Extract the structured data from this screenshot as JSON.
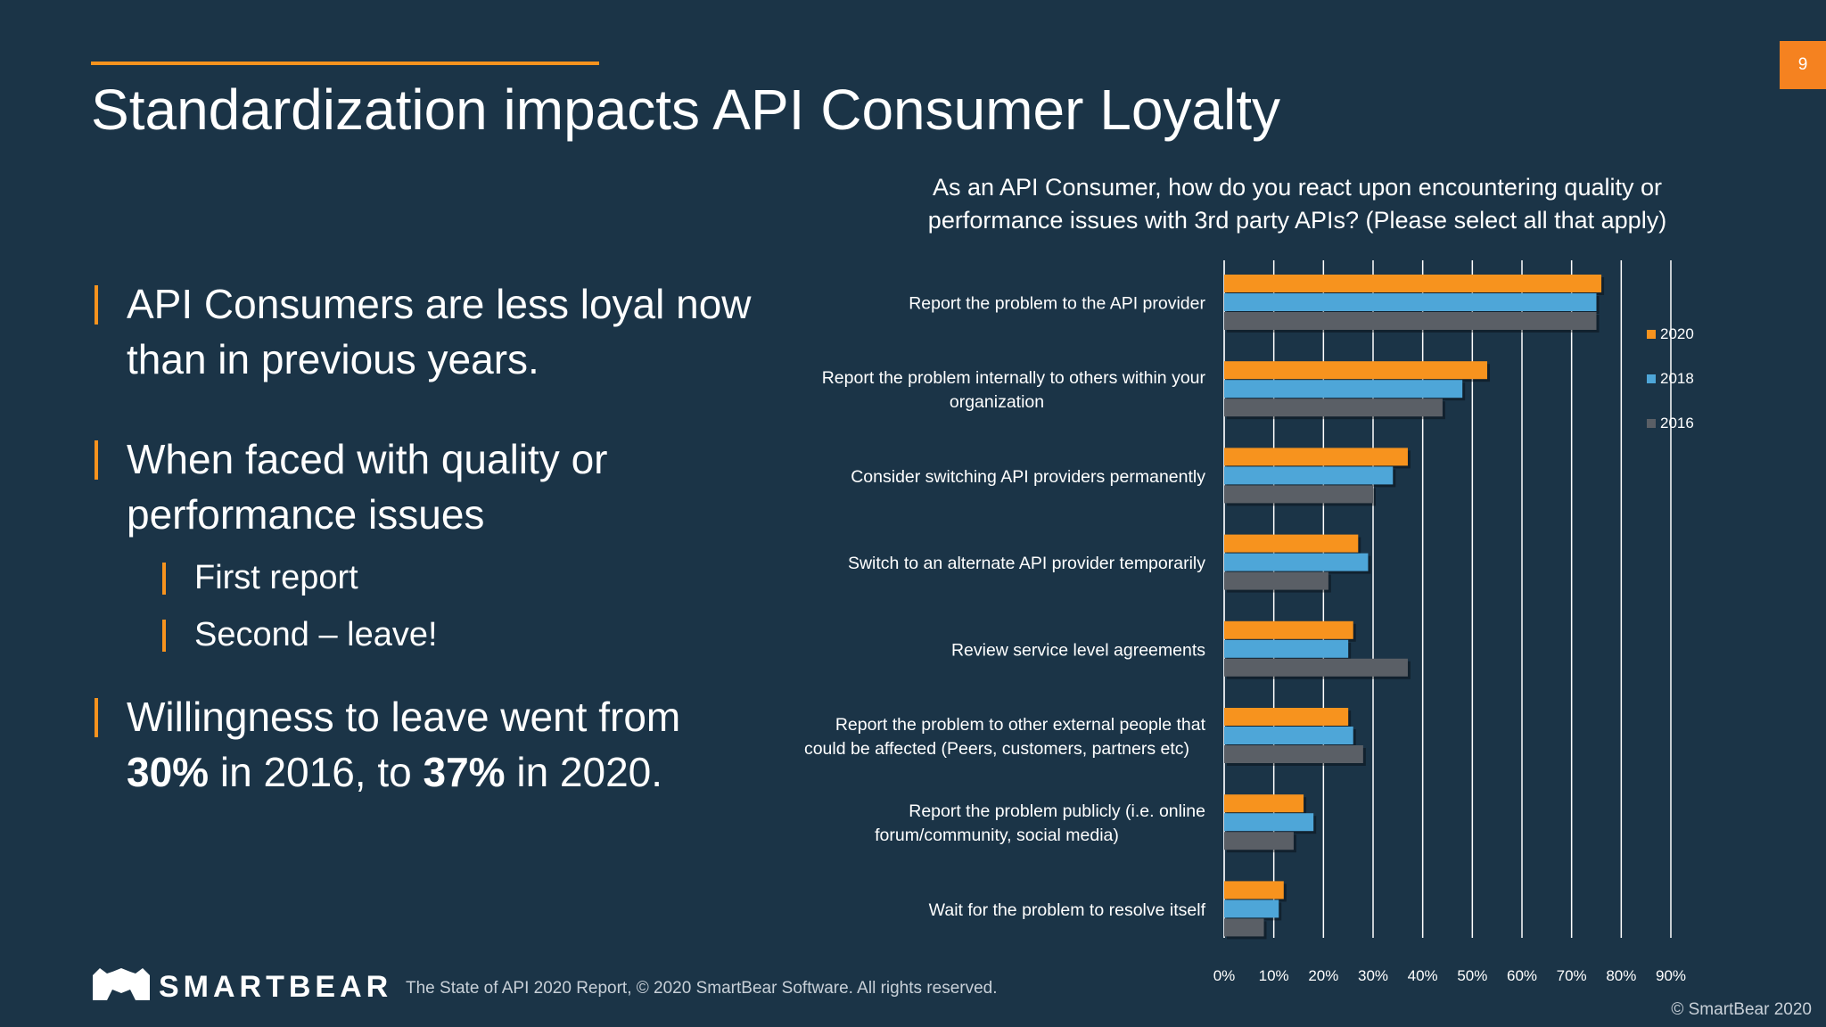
{
  "slide": {
    "title": "Standardization impacts API Consumer Loyalty",
    "page_number": "9",
    "bullets": {
      "b1_line1": "API Consumers are less loyal now",
      "b1_line2": "than in previous years.",
      "b2_line1": "When faced with quality or",
      "b2_line2": "performance  issues",
      "sub1": "First report",
      "sub2": "Second – leave!",
      "b3_line1": "Willingness to leave went from",
      "b3_val1": "30%",
      "b3_mid": " in 2016, to ",
      "b3_val2": "37%",
      "b3_end": " in 2020."
    },
    "footer": {
      "logo_text": "SMARTBEAR",
      "note": "The State of API 2020 Report, © 2020 SmartBear Software. All rights reserved.",
      "copyright": "© SmartBear 2020"
    },
    "colors": {
      "background": "#1b3447",
      "accent": "#f7931e",
      "series_2020": "#f7931e",
      "series_2018": "#4ea6d8",
      "series_2016": "#5a5f66"
    }
  },
  "chart_data": {
    "type": "bar",
    "orientation": "horizontal",
    "title_lines": [
      "As an API Consumer, how do you react upon encountering quality or",
      "performance issues with 3rd party APIs? (Please select all that apply)"
    ],
    "categories": [
      [
        "Report the problem to the API provider"
      ],
      [
        "Report the problem internally to others within your",
        "organization"
      ],
      [
        "Consider switching API providers permanently"
      ],
      [
        "Switch to an alternate API provider temporarily"
      ],
      [
        "Review service level agreements"
      ],
      [
        "Report the problem to other external people that",
        "could be affected (Peers, customers, partners etc)"
      ],
      [
        "Report the problem publicly (i.e. online",
        "forum/community, social media)"
      ],
      [
        "Wait for the problem to resolve itself"
      ]
    ],
    "series": [
      {
        "name": "2020",
        "color": "#f7931e",
        "values": [
          76,
          53,
          37,
          27,
          26,
          25,
          16,
          12
        ]
      },
      {
        "name": "2018",
        "color": "#4ea6d8",
        "values": [
          75,
          48,
          34,
          29,
          25,
          26,
          18,
          11
        ]
      },
      {
        "name": "2016",
        "color": "#5a5f66",
        "values": [
          75,
          44,
          30,
          21,
          37,
          28,
          14,
          8
        ]
      }
    ],
    "xlim": [
      0,
      90
    ],
    "ticks": [
      "0%",
      "10%",
      "20%",
      "30%",
      "40%",
      "50%",
      "60%",
      "70%",
      "80%",
      "90%"
    ],
    "grid": true,
    "legend_position": "right"
  }
}
